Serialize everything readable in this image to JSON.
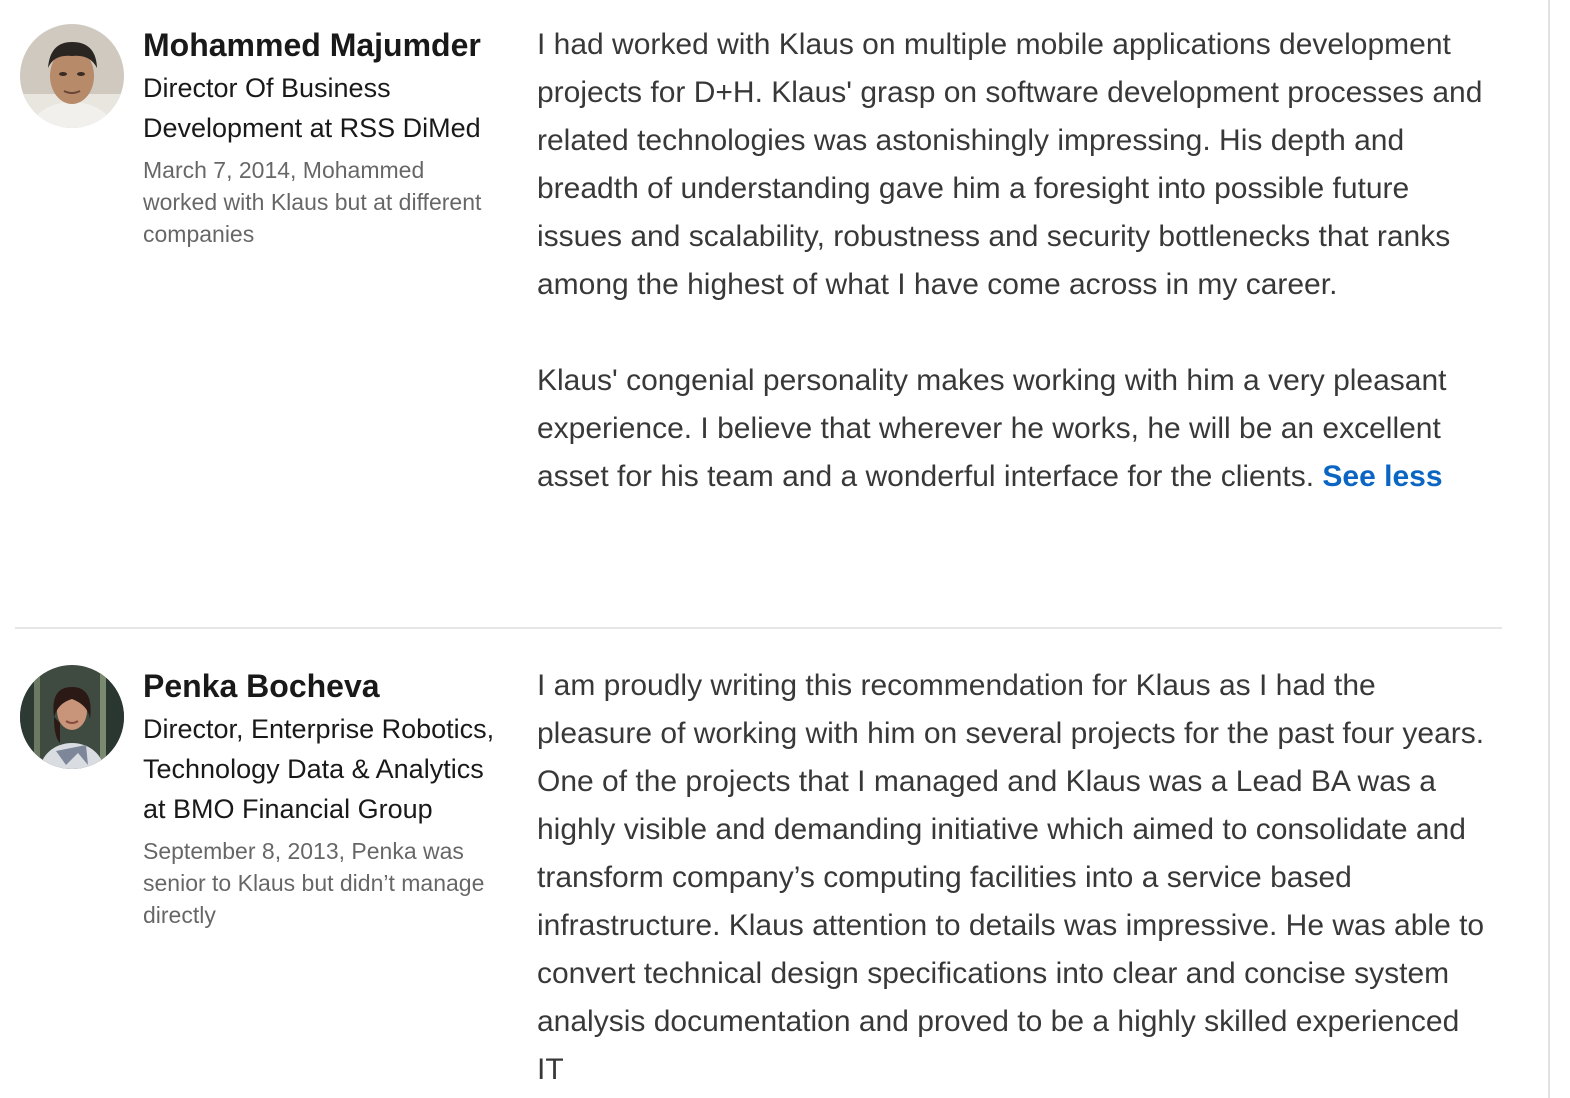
{
  "recommendations": [
    {
      "name": "Mohammed Majumder",
      "headline": "Director Of Business Development at RSS DiMed",
      "relationship": "March 7, 2014, Mohammed worked with Klaus but at different companies",
      "paragraph_1": "I had worked with Klaus on multiple mobile applications development projects for D+H. Klaus' grasp on software development processes and related technologies was astonishingly impressing. His depth and breadth of understanding gave him a foresight into possible future issues and scalability, robustness and security bottlenecks that ranks among the highest of what I have come across in my career.",
      "paragraph_2": "Klaus' congenial personality makes working with him a very pleasant experience. I believe that wherever he works, he will be an excellent asset for his team and a wonderful interface for the clients.",
      "see_less_label": "See less"
    },
    {
      "name": "Penka Bocheva",
      "headline": "Director, Enterprise Robotics, Technology Data & Analytics at BMO Financial Group",
      "relationship": "September 8, 2013, Penka was senior to Klaus but didn’t manage directly",
      "paragraph_1": "I am proudly writing this recommendation for Klaus as I had the pleasure of working with him on several projects for the past four years. One of the projects that I managed and Klaus was a Lead BA was a highly visible and demanding initiative which aimed to consolidate and transform company’s computing facilities into a service based infrastructure. Klaus attention to details was impressive. He was able to convert technical design specifications into clear and concise system analysis documentation and proved to be a highly skilled experienced IT"
    }
  ],
  "colors": {
    "link": "#0a66c2",
    "name_text": "#1a1a1a",
    "secondary_text": "#666666",
    "divider": "#e6e6e6"
  },
  "icons": {
    "avatar_1": "person-photo-avatar",
    "avatar_2": "person-photo-avatar"
  }
}
